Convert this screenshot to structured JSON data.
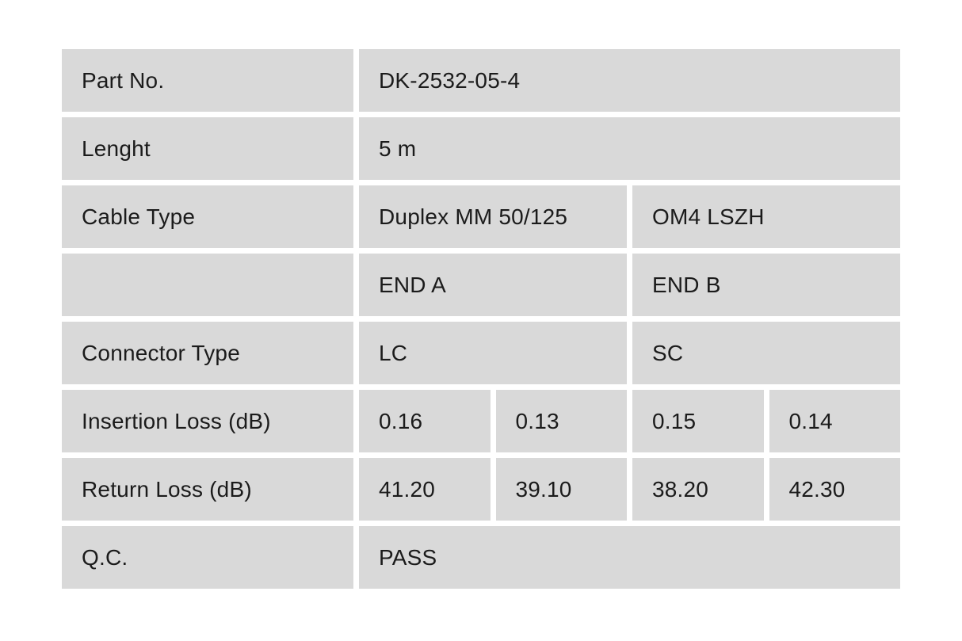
{
  "table": {
    "cell_bg": "#d9d9d9",
    "gap_color": "#ffffff",
    "text_color": "#1b1b1b",
    "rows": [
      {
        "label": "Part No.",
        "cells": [
          {
            "text": "DK-2532-05-4",
            "span": 4
          }
        ]
      },
      {
        "label": "Lenght",
        "cells": [
          {
            "text": "5 m",
            "span": 4
          }
        ]
      },
      {
        "label": "Cable Type",
        "cells": [
          {
            "text": "Duplex MM 50/125",
            "span": 2
          },
          {
            "text": "OM4 LSZH",
            "span": 2
          }
        ]
      },
      {
        "label": "",
        "cells": [
          {
            "text": "END A",
            "span": 2
          },
          {
            "text": "END B",
            "span": 2
          }
        ]
      },
      {
        "label": "Connector Type",
        "cells": [
          {
            "text": "LC",
            "span": 2
          },
          {
            "text": "SC",
            "span": 2
          }
        ]
      },
      {
        "label": "Insertion Loss (dB)",
        "cells": [
          {
            "text": "0.16",
            "span": 1
          },
          {
            "text": "0.13",
            "span": 1
          },
          {
            "text": "0.15",
            "span": 1
          },
          {
            "text": "0.14",
            "span": 1
          }
        ]
      },
      {
        "label": "Return Loss (dB)",
        "cells": [
          {
            "text": "41.20",
            "span": 1
          },
          {
            "text": "39.10",
            "span": 1
          },
          {
            "text": "38.20",
            "span": 1
          },
          {
            "text": "42.30",
            "span": 1
          }
        ]
      },
      {
        "label": "Q.C.",
        "cells": [
          {
            "text": "PASS",
            "span": 4
          }
        ]
      }
    ]
  }
}
